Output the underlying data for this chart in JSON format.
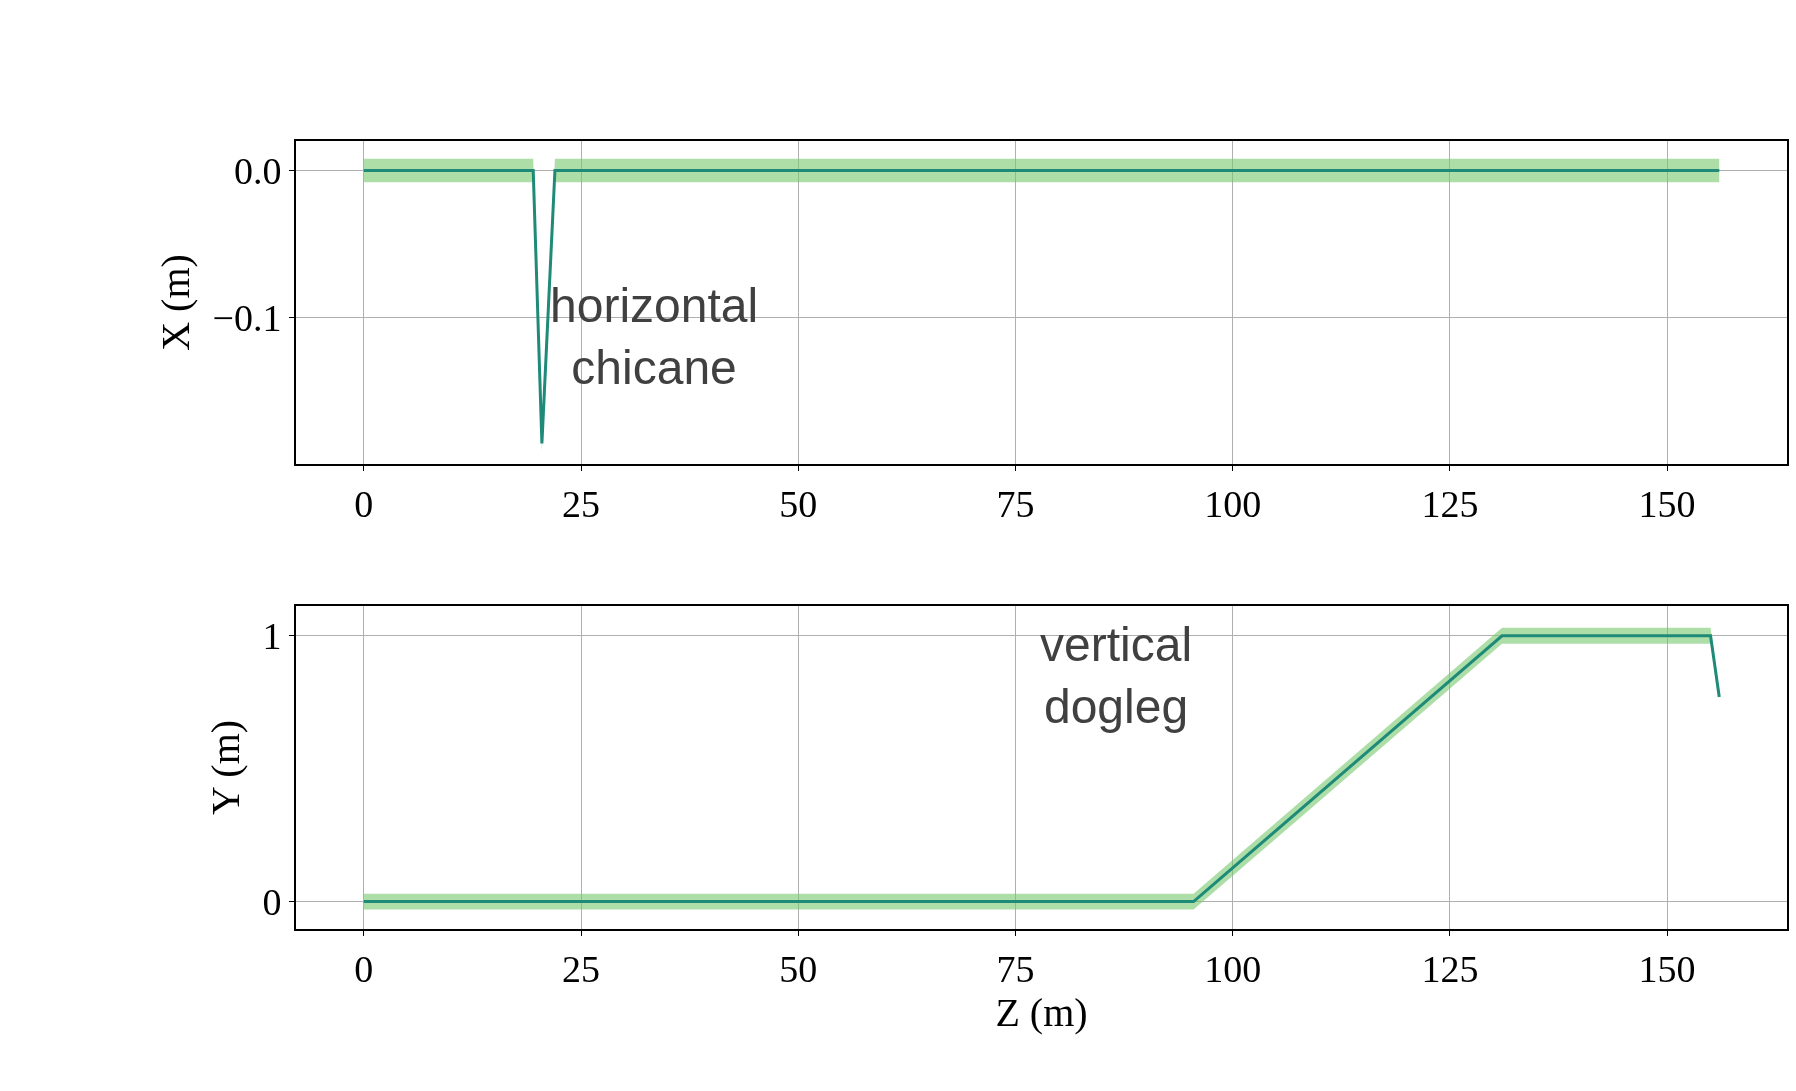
{
  "chart_data": [
    {
      "type": "line",
      "ylabel": "X (m)",
      "x": [
        0,
        19.5,
        20.5,
        22,
        50,
        100,
        156
      ],
      "xlim": [
        -7.8,
        163.8
      ],
      "xticks": [
        0,
        25,
        50,
        75,
        100,
        125,
        150
      ],
      "ylim": [
        -0.199,
        0.02
      ],
      "yticks": [
        {
          "value": 0,
          "label": "0.0"
        },
        {
          "value": -0.1,
          "label": "−0.1"
        }
      ],
      "grid": true,
      "series": [
        {
          "color": "#1f8a78",
          "values": [
            0,
            0,
            -0.185,
            0,
            0,
            0,
            0
          ],
          "lower": [
            -0.008,
            -0.008,
            -0.19,
            -0.008,
            -0.008,
            -0.008,
            -0.008
          ],
          "upper": [
            0.008,
            0.008,
            -0.18,
            0.008,
            0.008,
            0.008,
            0.008
          ]
        }
      ],
      "annotations": [
        "horizontal\nchicane"
      ]
    },
    {
      "type": "line",
      "ylabel": "Y (m)",
      "xlabel": "Z (m)",
      "x": [
        0,
        50,
        95.5,
        131,
        155,
        156
      ],
      "xlim": [
        -7.8,
        163.8
      ],
      "xticks": [
        0,
        25,
        50,
        75,
        100,
        125,
        150
      ],
      "ylim": [
        -0.103,
        1.112
      ],
      "yticks": [
        0,
        1
      ],
      "grid": true,
      "series": [
        {
          "color": "#1f8a78",
          "values": [
            0,
            0,
            0,
            1,
            1,
            0.77
          ],
          "lower": [
            -0.03,
            -0.03,
            -0.03,
            0.97,
            0.97,
            0.77
          ],
          "upper": [
            0.03,
            0.03,
            0.03,
            1.03,
            1.03,
            0.77
          ]
        }
      ],
      "annotations": [
        "vertical\ndogleg"
      ]
    }
  ]
}
